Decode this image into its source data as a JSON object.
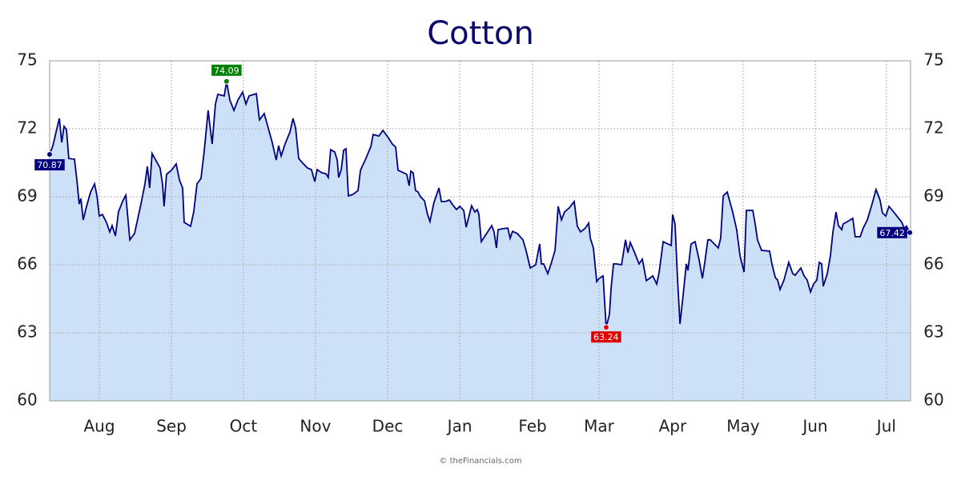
{
  "chart_data": {
    "type": "area",
    "title": "Cotton",
    "footer": "© theFinancials.com",
    "color": "#000080",
    "fill": "#cce0f7",
    "end_label_color": "#000080",
    "high_color": "#008000",
    "low_color": "#e00000",
    "grid": true,
    "xlim": [
      0,
      364
    ],
    "ylim": [
      60,
      75
    ],
    "yticks": [
      60,
      63,
      66,
      69,
      72,
      75
    ],
    "xticks": [
      {
        "value": 21.0,
        "label": "Aug"
      },
      {
        "value": 51.5,
        "label": "Sep"
      },
      {
        "value": 81.9,
        "label": "Oct"
      },
      {
        "value": 112.4,
        "label": "Nov"
      },
      {
        "value": 142.9,
        "label": "Dec"
      },
      {
        "value": 173.4,
        "label": "Jan"
      },
      {
        "value": 204.2,
        "label": "Feb"
      },
      {
        "value": 232.3,
        "label": "Mar"
      },
      {
        "value": 263.4,
        "label": "Apr"
      },
      {
        "value": 293.2,
        "label": "May"
      },
      {
        "value": 323.7,
        "label": "Jun"
      },
      {
        "value": 353.8,
        "label": "Jul"
      }
    ],
    "x": [
      0,
      1.4,
      2.7,
      4.1,
      5.1,
      6.1,
      7.1,
      8.1,
      10.5,
      11.5,
      12.5,
      13.2,
      14.2,
      15.6,
      17.3,
      19.0,
      20.0,
      21.0,
      22.3,
      24.0,
      25.4,
      26.4,
      27.8,
      29.1,
      30.8,
      32.2,
      33.9,
      35.9,
      38.6,
      40.3,
      41.3,
      42.3,
      43.3,
      46.7,
      47.7,
      48.4,
      49.4,
      51.5,
      53.5,
      54.9,
      56.2,
      56.9,
      59.6,
      60.9,
      62.3,
      64.0,
      65.3,
      67.0,
      68.7,
      70.1,
      71.1,
      73.8,
      74.8,
      76.2,
      77.9,
      79.6,
      81.6,
      83.0,
      84.3,
      87.4,
      88.7,
      90.7,
      92.4,
      94.1,
      95.8,
      96.8,
      97.9,
      99.5,
      101.6,
      102.9,
      104.0,
      105.3,
      106.7,
      109.0,
      110.7,
      112.1,
      113.1,
      115.1,
      116.8,
      117.8,
      118.8,
      120.5,
      121.6,
      122.2,
      123.3,
      124.3,
      125.3,
      126.3,
      128.3,
      130.4,
      131.4,
      133.4,
      135.8,
      136.8,
      139.2,
      140.9,
      143.2,
      144.9,
      146.3,
      147.3,
      149.7,
      151.0,
      152.0,
      152.7,
      153.7,
      154.7,
      155.8,
      156.8,
      158.5,
      159.8,
      160.8,
      162.5,
      164.6,
      165.6,
      167.3,
      169.0,
      170.7,
      172.0,
      173.4,
      175.1,
      176.1,
      178.4,
      179.8,
      180.8,
      181.5,
      182.5,
      184.5,
      186.9,
      187.9,
      188.9,
      189.6,
      191.6,
      193.7,
      194.7,
      195.7,
      197.7,
      200.1,
      201.4,
      203.2,
      205.5,
      207.2,
      207.9,
      208.9,
      210.6,
      212.0,
      213.7,
      215.0,
      216.4,
      217.7,
      219.7,
      221.8,
      223.1,
      224.5,
      226.5,
      227.9,
      228.6,
      229.9,
      231.3,
      232.3,
      234.0,
      235.3,
      236.7,
      237.4,
      238.4,
      239.7,
      241.8,
      243.5,
      244.5,
      245.5,
      247.2,
      249.2,
      250.6,
      252.3,
      253.6,
      255.0,
      256.7,
      257.7,
      259.4,
      261.4,
      262.8,
      263.4,
      264.4,
      265.5,
      266.5,
      267.8,
      269.2,
      269.9,
      271.2,
      272.9,
      274.6,
      276.0,
      277.0,
      278.3,
      279.3,
      281.0,
      282.7,
      283.7,
      284.8,
      286.5,
      288.8,
      290.5,
      291.9,
      293.6,
      294.6,
      297.3,
      298.3,
      299.3,
      301.0,
      304.4,
      305.4,
      306.8,
      307.8,
      308.8,
      310.5,
      312.5,
      314.2,
      315.2,
      317.6,
      319.0,
      320.3,
      321.7,
      323.0,
      324.4,
      325.4,
      326.4,
      327.1,
      328.8,
      330.1,
      331.2,
      332.5,
      333.5,
      334.9,
      335.5,
      337.9,
      339.6,
      340.6,
      342.7,
      344.0,
      345.7,
      347.7,
      349.4,
      351.1,
      352.1,
      353.5,
      354.9,
      356.9,
      358.2,
      360.3,
      361.3,
      362.3,
      363.7
    ],
    "values": [
      70.87,
      71.26,
      71.86,
      72.46,
      71.4,
      72.11,
      71.97,
      70.69,
      70.66,
      69.74,
      68.68,
      68.93,
      67.98,
      68.58,
      69.21,
      69.57,
      69.04,
      68.15,
      68.22,
      67.87,
      67.45,
      67.73,
      67.27,
      68.33,
      68.79,
      69.07,
      67.1,
      67.38,
      68.68,
      69.57,
      70.34,
      69.39,
      70.91,
      70.27,
      69.57,
      68.58,
      69.99,
      70.17,
      70.45,
      69.74,
      69.39,
      67.87,
      67.7,
      68.33,
      69.57,
      69.81,
      70.98,
      72.81,
      71.33,
      73.09,
      73.52,
      73.45,
      74.09,
      73.27,
      72.81,
      73.27,
      73.62,
      73.09,
      73.45,
      73.55,
      72.39,
      72.67,
      72.04,
      71.4,
      70.62,
      71.26,
      70.8,
      71.33,
      71.86,
      72.46,
      72.04,
      70.69,
      70.52,
      70.27,
      70.2,
      69.67,
      70.2,
      70.06,
      70.02,
      69.85,
      71.08,
      70.98,
      70.62,
      69.85,
      70.2,
      71.05,
      71.12,
      69.04,
      69.11,
      69.28,
      70.17,
      70.62,
      71.22,
      71.75,
      71.68,
      71.93,
      71.61,
      71.33,
      71.19,
      70.17,
      70.06,
      69.99,
      69.49,
      70.13,
      70.06,
      69.28,
      69.21,
      69.0,
      68.82,
      68.22,
      67.91,
      68.75,
      69.39,
      68.79,
      68.79,
      68.86,
      68.61,
      68.44,
      68.58,
      68.4,
      67.66,
      68.61,
      68.33,
      68.44,
      68.22,
      67.02,
      67.34,
      67.73,
      67.45,
      66.74,
      67.55,
      67.59,
      67.62,
      67.17,
      67.48,
      67.38,
      67.1,
      66.64,
      65.86,
      66.0,
      66.92,
      66.04,
      66.04,
      65.61,
      66.04,
      66.64,
      68.58,
      67.98,
      68.33,
      68.51,
      68.79,
      67.7,
      67.45,
      67.62,
      67.84,
      67.17,
      66.74,
      65.26,
      65.4,
      65.51,
      63.24,
      63.81,
      64.98,
      66.04,
      66.04,
      66.0,
      67.1,
      66.53,
      66.99,
      66.57,
      66.04,
      66.25,
      65.3,
      65.4,
      65.51,
      65.15,
      65.68,
      67.02,
      66.92,
      66.85,
      68.22,
      67.8,
      65.33,
      63.39,
      64.62,
      66.04,
      65.75,
      66.92,
      67.02,
      66.21,
      65.4,
      66.11,
      67.1,
      67.1,
      66.92,
      66.74,
      67.17,
      69.04,
      69.21,
      68.33,
      67.55,
      66.39,
      65.68,
      68.4,
      68.4,
      67.8,
      67.1,
      66.64,
      66.6,
      66.04,
      65.44,
      65.33,
      64.91,
      65.33,
      66.11,
      65.61,
      65.54,
      65.86,
      65.51,
      65.33,
      64.8,
      65.15,
      65.33,
      66.11,
      66.04,
      65.05,
      65.61,
      66.39,
      67.45,
      68.33,
      67.73,
      67.55,
      67.8,
      67.94,
      68.05,
      67.24,
      67.24,
      67.62,
      67.98,
      68.68,
      69.32,
      68.86,
      68.29,
      68.15,
      68.58,
      68.33,
      68.15,
      67.87,
      67.62,
      67.7,
      67.42
    ]
  }
}
